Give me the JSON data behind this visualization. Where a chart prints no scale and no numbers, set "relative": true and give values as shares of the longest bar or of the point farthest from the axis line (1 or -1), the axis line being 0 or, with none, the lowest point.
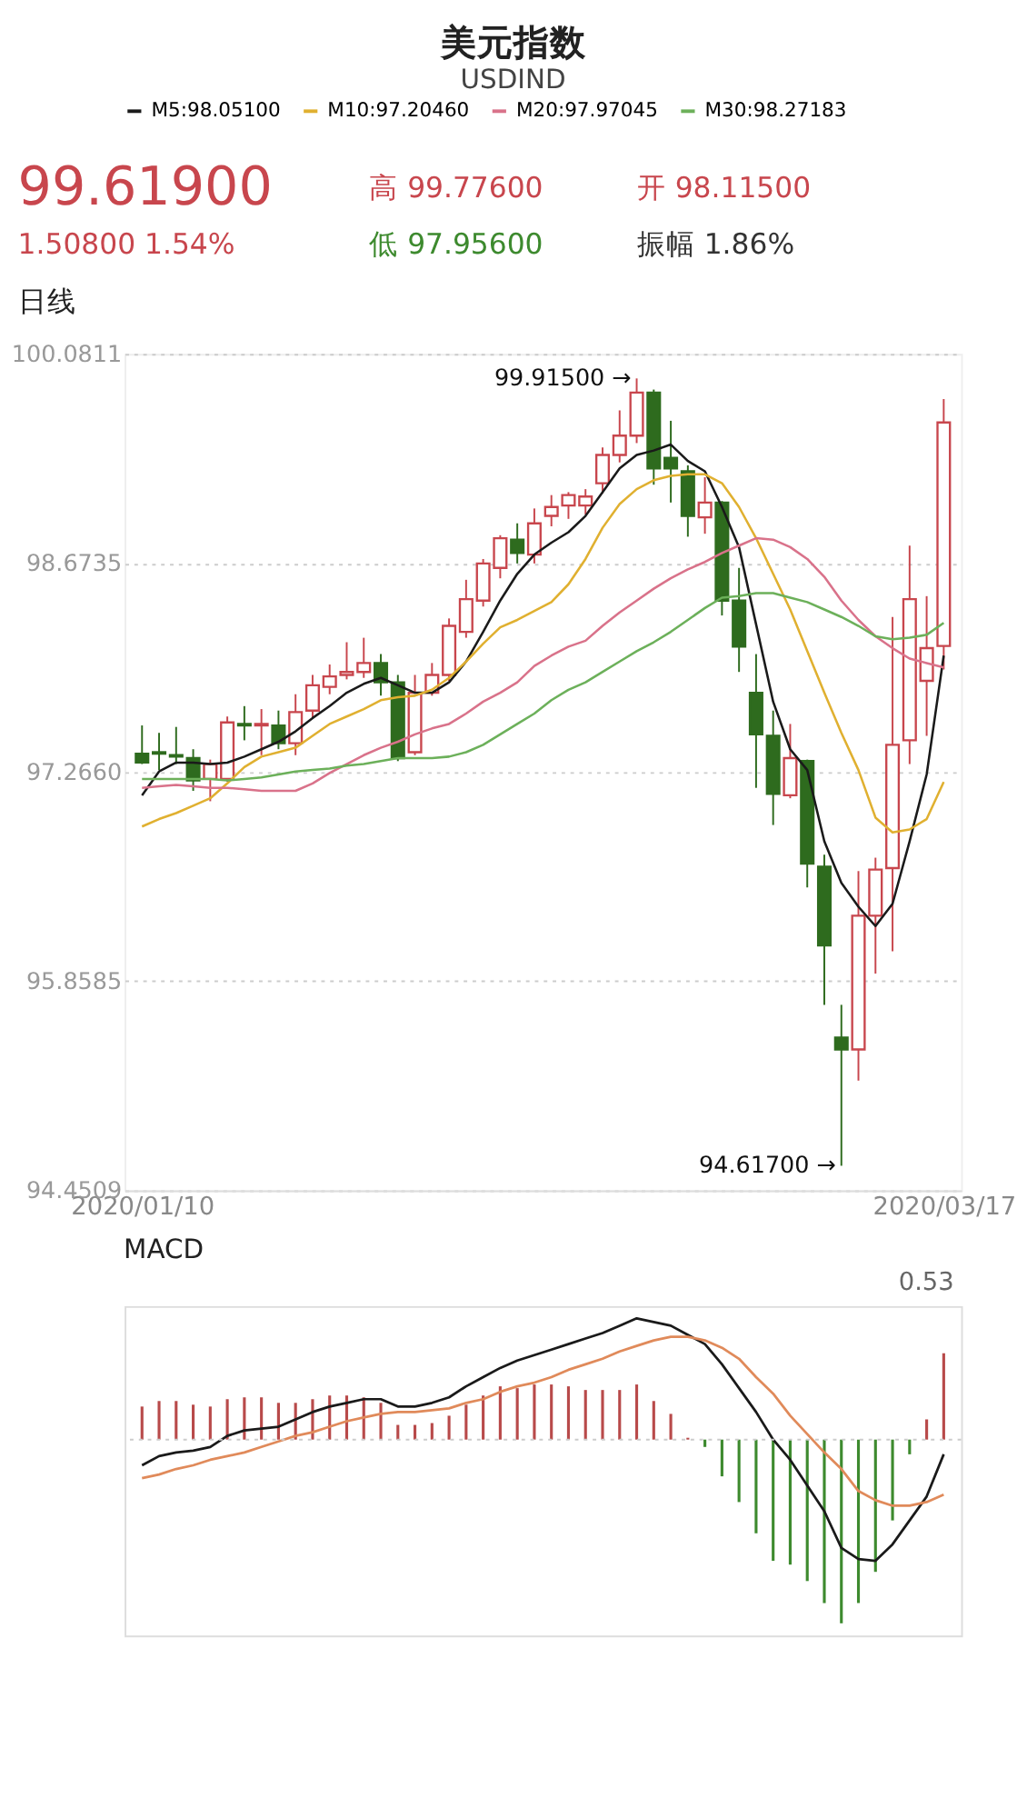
{
  "chart_data": [
    {
      "type": "candlestick",
      "title": "美元指数",
      "subtitle": "USDIND",
      "annotations": [
        "99.61900",
        "高 99.77600",
        "开 98.11500",
        "1.50800  1.54%",
        "低 97.95600",
        "振幅 1.86%",
        "日线",
        "99.91500 →",
        "94.61700 →"
      ],
      "categories": [
        "2020/01/10",
        null,
        null,
        null,
        null,
        null,
        null,
        null,
        null,
        null,
        null,
        null,
        null,
        null,
        null,
        null,
        null,
        null,
        null,
        null,
        null,
        null,
        null,
        null,
        null,
        null,
        null,
        null,
        null,
        null,
        null,
        null,
        null,
        null,
        null,
        null,
        null,
        null,
        null,
        null,
        null,
        null,
        null,
        null,
        null,
        null,
        null,
        "2020/03/17"
      ],
      "ohlc": [
        [
          97.39,
          97.58,
          97.32,
          97.33
        ],
        [
          97.4,
          97.53,
          97.28,
          97.39
        ],
        [
          97.38,
          97.57,
          97.32,
          97.37
        ],
        [
          97.36,
          97.42,
          97.14,
          97.21
        ],
        [
          97.22,
          97.35,
          97.07,
          97.32
        ],
        [
          97.22,
          97.64,
          97.2,
          97.6
        ],
        [
          97.59,
          97.71,
          97.48,
          97.58
        ],
        [
          97.58,
          97.69,
          97.38,
          97.59
        ],
        [
          97.58,
          97.68,
          97.42,
          97.46
        ],
        [
          97.46,
          97.79,
          97.38,
          97.67
        ],
        [
          97.68,
          97.92,
          97.63,
          97.85
        ],
        [
          97.84,
          97.99,
          97.79,
          97.91
        ],
        [
          97.92,
          98.14,
          97.89,
          97.94
        ],
        [
          97.94,
          98.17,
          97.9,
          98.0
        ],
        [
          98.0,
          98.06,
          97.78,
          97.87
        ],
        [
          97.87,
          97.92,
          97.34,
          97.36
        ],
        [
          97.4,
          97.92,
          97.38,
          97.8
        ],
        [
          97.8,
          98.0,
          97.78,
          97.92
        ],
        [
          97.92,
          98.3,
          97.88,
          98.25
        ],
        [
          98.21,
          98.56,
          98.17,
          98.43
        ],
        [
          98.42,
          98.7,
          98.38,
          98.67
        ],
        [
          98.64,
          98.86,
          98.57,
          98.84
        ],
        [
          98.83,
          98.94,
          98.67,
          98.74
        ],
        [
          98.73,
          99.04,
          98.67,
          98.94
        ],
        [
          98.99,
          99.13,
          98.92,
          99.05
        ],
        [
          99.06,
          99.15,
          98.97,
          99.13
        ],
        [
          99.06,
          99.17,
          99.0,
          99.12
        ],
        [
          99.21,
          99.45,
          99.14,
          99.4
        ],
        [
          99.4,
          99.7,
          99.35,
          99.53
        ],
        [
          99.53,
          99.915,
          99.48,
          99.82
        ],
        [
          99.82,
          99.84,
          99.2,
          99.31
        ],
        [
          99.38,
          99.63,
          99.08,
          99.31
        ],
        [
          99.29,
          99.33,
          98.85,
          98.99
        ],
        [
          98.98,
          99.25,
          98.87,
          99.08
        ],
        [
          99.08,
          99.09,
          98.32,
          98.42
        ],
        [
          98.42,
          98.64,
          97.94,
          98.11
        ],
        [
          97.8,
          98.06,
          97.16,
          97.52
        ],
        [
          97.51,
          97.68,
          96.91,
          97.12
        ],
        [
          97.11,
          97.59,
          97.09,
          97.36
        ],
        [
          97.34,
          97.35,
          96.49,
          96.65
        ],
        [
          96.63,
          96.71,
          95.7,
          96.1
        ],
        [
          95.48,
          95.7,
          94.617,
          95.4
        ],
        [
          95.4,
          96.6,
          95.19,
          96.3
        ],
        [
          96.3,
          96.69,
          95.91,
          96.61
        ],
        [
          96.62,
          98.31,
          96.06,
          97.45
        ],
        [
          97.48,
          98.79,
          97.32,
          98.43
        ],
        [
          97.88,
          98.45,
          97.51,
          98.1
        ],
        [
          98.115,
          99.776,
          97.956,
          99.619
        ]
      ],
      "colors": [
        "#2e6b1e",
        "#2e6b1e",
        "#2e6b1e",
        "#2e6b1e",
        "#c8464d",
        "#c8464d",
        "#2e6b1e",
        "#c8464d",
        "#2e6b1e",
        "#c8464d",
        "#c8464d",
        "#c8464d",
        "#c8464d",
        "#c8464d",
        "#2e6b1e",
        "#2e6b1e",
        "#c8464d",
        "#c8464d",
        "#c8464d",
        "#c8464d",
        "#c8464d",
        "#c8464d",
        "#2e6b1e",
        "#c8464d",
        "#c8464d",
        "#c8464d",
        "#c8464d",
        "#c8464d",
        "#c8464d",
        "#c8464d",
        "#2e6b1e",
        "#2e6b1e",
        "#2e6b1e",
        "#c8464d",
        "#2e6b1e",
        "#2e6b1e",
        "#2e6b1e",
        "#2e6b1e",
        "#c8464d",
        "#2e6b1e",
        "#2e6b1e",
        "#2e6b1e",
        "#c8464d",
        "#c8464d",
        "#c8464d",
        "#c8464d",
        "#c8464d",
        "#c8464d"
      ],
      "series": [
        {
          "name": "M5:98.05100",
          "type": "line",
          "color": "#1a1a1a",
          "values": [
            97.11,
            97.27,
            97.33,
            97.33,
            97.32,
            97.33,
            97.37,
            97.42,
            97.47,
            97.54,
            97.63,
            97.71,
            97.8,
            97.86,
            97.9,
            97.85,
            97.8,
            97.8,
            97.87,
            98.01,
            98.21,
            98.42,
            98.6,
            98.73,
            98.81,
            98.88,
            98.99,
            99.15,
            99.31,
            99.4,
            99.43,
            99.47,
            99.36,
            99.29,
            99.05,
            98.78,
            98.26,
            97.74,
            97.42,
            97.28,
            96.8,
            96.52,
            96.36,
            96.23,
            96.38,
            96.8,
            97.25,
            98.05
          ]
        },
        {
          "name": "M10:97.20460",
          "type": "line",
          "color": "#e0b030",
          "values": [
            96.9,
            96.95,
            96.99,
            97.04,
            97.09,
            97.19,
            97.3,
            97.37,
            97.4,
            97.43,
            97.51,
            97.59,
            97.64,
            97.69,
            97.75,
            97.77,
            97.78,
            97.82,
            97.9,
            98.01,
            98.13,
            98.24,
            98.29,
            98.35,
            98.41,
            98.53,
            98.7,
            98.91,
            99.07,
            99.17,
            99.23,
            99.26,
            99.27,
            99.27,
            99.21,
            99.05,
            98.84,
            98.6,
            98.36,
            98.08,
            97.8,
            97.53,
            97.28,
            96.96,
            96.86,
            96.88,
            96.95,
            97.2
          ]
        },
        {
          "name": "M20:97.97045",
          "type": "line",
          "color": "#d9728a",
          "values": [
            97.16,
            97.17,
            97.18,
            97.17,
            97.16,
            97.16,
            97.15,
            97.14,
            97.14,
            97.14,
            97.19,
            97.26,
            97.32,
            97.38,
            97.43,
            97.47,
            97.52,
            97.56,
            97.59,
            97.66,
            97.74,
            97.8,
            97.87,
            97.98,
            98.05,
            98.11,
            98.15,
            98.25,
            98.34,
            98.42,
            98.5,
            98.57,
            98.63,
            98.68,
            98.74,
            98.79,
            98.84,
            98.83,
            98.78,
            98.7,
            98.58,
            98.42,
            98.29,
            98.18,
            98.1,
            98.03,
            98.0,
            97.97
          ]
        },
        {
          "name": "M30:98.27183",
          "type": "line",
          "color": "#6cb05a",
          "values": [
            97.22,
            97.22,
            97.22,
            97.22,
            97.22,
            97.21,
            97.22,
            97.23,
            97.25,
            97.27,
            97.28,
            97.29,
            97.31,
            97.32,
            97.34,
            97.36,
            97.36,
            97.36,
            97.37,
            97.4,
            97.45,
            97.52,
            97.59,
            97.66,
            97.75,
            97.82,
            97.87,
            97.94,
            98.01,
            98.08,
            98.14,
            98.21,
            98.29,
            98.37,
            98.44,
            98.45,
            98.47,
            98.47,
            98.44,
            98.41,
            98.36,
            98.31,
            98.25,
            98.18,
            98.16,
            98.17,
            98.19,
            98.27
          ]
        }
      ],
      "ylim": [
        94.4509,
        100.0811
      ],
      "yticks": [
        94.4509,
        95.8585,
        {
          "value": 97.266,
          "label": "97.2660"
        },
        98.6735,
        100.0811
      ],
      "grid": "y",
      "legend": "top"
    },
    {
      "type": "bar",
      "title": "MACD",
      "annotations": [
        "0.53"
      ],
      "relative": true,
      "categories": [
        null,
        null,
        null,
        null,
        null,
        null,
        null,
        null,
        null,
        null,
        null,
        null,
        null,
        null,
        null,
        null,
        null,
        null,
        null,
        null,
        null,
        null,
        null,
        null,
        null,
        null,
        null,
        null,
        null,
        null,
        null,
        null,
        null,
        null,
        null,
        null,
        null,
        null,
        null,
        null,
        null,
        null,
        null,
        null,
        null,
        null,
        null,
        null
      ],
      "series": [
        {
          "type": "bar",
          "values": [
            0.18,
            0.21,
            0.21,
            0.19,
            0.18,
            0.22,
            0.23,
            0.23,
            0.2,
            0.2,
            0.22,
            0.24,
            0.24,
            0.23,
            0.2,
            0.08,
            0.08,
            0.09,
            0.13,
            0.19,
            0.24,
            0.29,
            0.28,
            0.3,
            0.3,
            0.29,
            0.27,
            0.27,
            0.27,
            0.3,
            0.21,
            0.14,
            0.01,
            -0.04,
            -0.2,
            -0.34,
            -0.51,
            -0.66,
            -0.68,
            -0.77,
            -0.89,
            -1,
            -0.89,
            -0.72,
            -0.44,
            -0.08,
            0.11,
            0.47
          ],
          "colors": [
            "#b84a4a",
            "#b84a4a",
            "#b84a4a",
            "#b84a4a",
            "#b84a4a",
            "#b84a4a",
            "#b84a4a",
            "#b84a4a",
            "#b84a4a",
            "#b84a4a",
            "#b84a4a",
            "#b84a4a",
            "#b84a4a",
            "#b84a4a",
            "#b84a4a",
            "#b84a4a",
            "#b84a4a",
            "#b84a4a",
            "#b84a4a",
            "#b84a4a",
            "#b84a4a",
            "#b84a4a",
            "#b84a4a",
            "#b84a4a",
            "#b84a4a",
            "#b84a4a",
            "#b84a4a",
            "#b84a4a",
            "#b84a4a",
            "#b84a4a",
            "#b84a4a",
            "#b84a4a",
            "#b84a4a",
            "#3d8a2e",
            "#3d8a2e",
            "#3d8a2e",
            "#3d8a2e",
            "#3d8a2e",
            "#3d8a2e",
            "#3d8a2e",
            "#3d8a2e",
            "#3d8a2e",
            "#3d8a2e",
            "#3d8a2e",
            "#3d8a2e",
            "#3d8a2e",
            "#b84a4a",
            "#b84a4a"
          ]
        },
        {
          "type": "line",
          "color": "#1a1a1a",
          "values": [
            -0.14,
            -0.09,
            -0.07,
            -0.06,
            -0.04,
            0.02,
            0.05,
            0.06,
            0.07,
            0.11,
            0.15,
            0.18,
            0.2,
            0.22,
            0.22,
            0.18,
            0.18,
            0.2,
            0.23,
            0.29,
            0.34,
            0.39,
            0.43,
            0.46,
            0.49,
            0.52,
            0.55,
            0.58,
            0.62,
            0.66,
            0.64,
            0.62,
            0.57,
            0.52,
            0.41,
            0.28,
            0.15,
            0,
            -0.11,
            -0.25,
            -0.39,
            -0.59,
            -0.65,
            -0.66,
            -0.57,
            -0.44,
            -0.31,
            -0.08
          ]
        },
        {
          "type": "line",
          "color": "#e08a5a",
          "values": [
            -0.21,
            -0.19,
            -0.16,
            -0.14,
            -0.11,
            -0.09,
            -0.07,
            -0.04,
            -0.01,
            0.02,
            0.04,
            0.07,
            0.1,
            0.12,
            0.14,
            0.15,
            0.15,
            0.16,
            0.17,
            0.2,
            0.22,
            0.26,
            0.29,
            0.31,
            0.34,
            0.38,
            0.41,
            0.44,
            0.48,
            0.51,
            0.54,
            0.56,
            0.56,
            0.54,
            0.5,
            0.44,
            0.34,
            0.25,
            0.13,
            0.03,
            -0.07,
            -0.16,
            -0.28,
            -0.33,
            -0.36,
            -0.36,
            -0.34,
            -0.3
          ]
        }
      ],
      "ref_lines": [
        {
          "axis": "y",
          "value": 0,
          "color": "#cccccc",
          "line_style": "dotted"
        }
      ]
    }
  ]
}
